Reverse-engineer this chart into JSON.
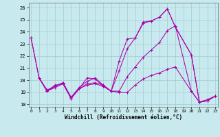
{
  "xlabel": "Windchill (Refroidissement éolien,°C)",
  "bg_color": "#c8eaee",
  "grid_color": "#9ecdd4",
  "line_color": "#aa00aa",
  "xlim": [
    -0.3,
    23.3
  ],
  "ylim": [
    17.8,
    26.4
  ],
  "yticks": [
    18,
    19,
    20,
    21,
    22,
    23,
    24,
    25,
    26
  ],
  "xticks": [
    0,
    1,
    2,
    3,
    4,
    5,
    6,
    7,
    8,
    9,
    10,
    11,
    12,
    13,
    14,
    15,
    16,
    17,
    18,
    19,
    20,
    21,
    22,
    23
  ],
  "series": [
    {
      "x": [
        0,
        1,
        2,
        3,
        4,
        5,
        6,
        7,
        8,
        9,
        10,
        11,
        12,
        13,
        14,
        15,
        16,
        17,
        18,
        20,
        21,
        22,
        23
      ],
      "y": [
        23.5,
        20.2,
        19.1,
        19.6,
        19.7,
        18.5,
        19.3,
        20.2,
        20.1,
        19.5,
        19.1,
        21.6,
        23.4,
        23.5,
        24.8,
        24.9,
        25.2,
        25.9,
        24.4,
        22.1,
        18.2,
        18.3,
        18.7
      ]
    },
    {
      "x": [
        0,
        1,
        2,
        3,
        4,
        5,
        6,
        7,
        8,
        9,
        10,
        11,
        12,
        13,
        14,
        15,
        16,
        17,
        18,
        20,
        21,
        22,
        23
      ],
      "y": [
        23.5,
        20.2,
        19.1,
        19.5,
        19.8,
        18.5,
        19.3,
        19.7,
        19.8,
        19.6,
        19.1,
        19.0,
        19.0,
        19.6,
        20.1,
        20.4,
        20.6,
        20.9,
        21.1,
        19.1,
        18.2,
        18.4,
        18.7
      ]
    },
    {
      "x": [
        1,
        2,
        3,
        4,
        5,
        6,
        7,
        8,
        9,
        10,
        11,
        12,
        13,
        14,
        15,
        16,
        17,
        18,
        20,
        21,
        22,
        23
      ],
      "y": [
        20.2,
        19.1,
        19.4,
        19.7,
        18.5,
        19.3,
        19.6,
        19.7,
        19.5,
        19.1,
        20.8,
        22.6,
        23.5,
        24.7,
        24.9,
        25.2,
        25.9,
        24.4,
        22.1,
        18.2,
        18.3,
        18.7
      ]
    },
    {
      "x": [
        1,
        2,
        3,
        4,
        5,
        6,
        7,
        8,
        9,
        10,
        11,
        12,
        13,
        14,
        15,
        16,
        17,
        18,
        20,
        21,
        22,
        23
      ],
      "y": [
        20.2,
        19.2,
        19.5,
        19.8,
        18.6,
        19.4,
        19.9,
        20.2,
        19.6,
        19.1,
        19.1,
        20.3,
        21.1,
        21.9,
        22.5,
        23.1,
        24.1,
        24.5,
        19.1,
        18.2,
        18.3,
        18.7
      ]
    }
  ]
}
